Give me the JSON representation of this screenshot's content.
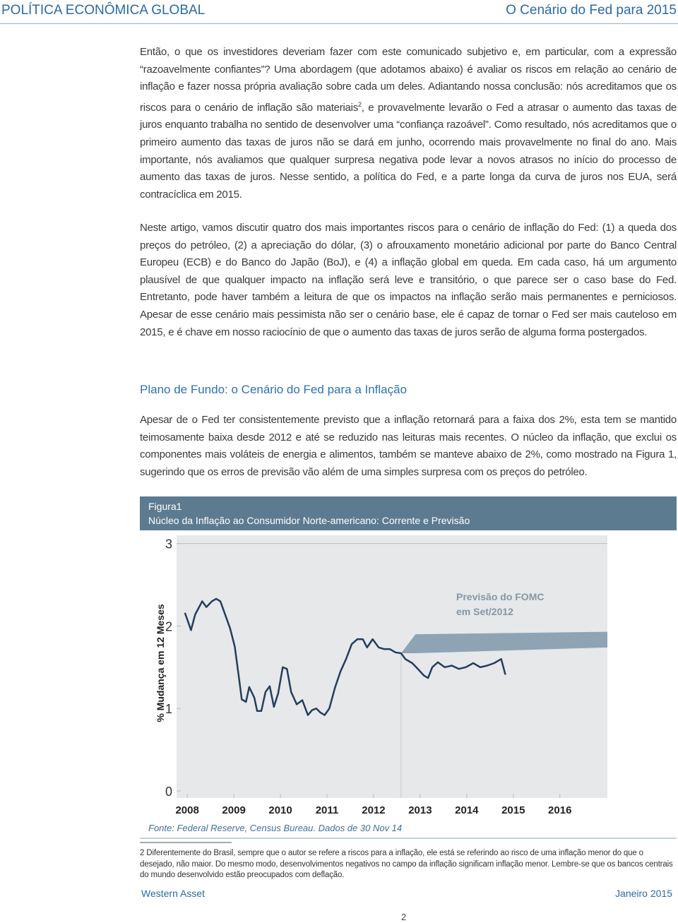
{
  "header": {
    "left": "POLÍTICA ECONÔMICA GLOBAL",
    "right": "O Cenário do Fed para 2015"
  },
  "body": {
    "paragraph_1": {
      "before": "Então, o que os investidores deveriam fazer com este comunicado subjetivo e, em particular, com a expressão “razoavelmente confiantes”? Uma abordagem (que adotamos abaixo) é avaliar os riscos em relação ao cenário de inflação e fazer nossa própria avaliação sobre cada um deles. Adiantando nossa conclusão: nós acreditamos que os riscos para o cenário de inflação são materiais",
      "sup": "2",
      "after": ", e provavelmente levarão o Fed a atrasar o aumento das taxas de juros enquanto trabalha no sentido de desenvolver uma “confiança razoável”. Como resultado, nós acreditamos que o primeiro aumento das taxas de juros não se dará em junho, ocorrendo mais provavelmente no final do ano. Mais importante, nós avaliamos que qualquer surpresa negativa pode levar a novos atrasos no início do processo de aumento das taxas de juros. Nesse sentido, a política do Fed, e a parte longa da curva de juros nos EUA, será contracíclica em 2015."
    },
    "paragraph_2": "Neste artigo, vamos discutir quatro dos mais importantes riscos para o cenário de inflação do Fed: (1) a queda dos preços do petróleo, (2) a apreciação do dólar, (3) o afrouxamento monetário adicional por parte do Banco Central Europeu (ECB) e do Banco do Japão (BoJ), e (4) a inflação global em queda. Em cada caso, há um argumento plausível de que qualquer impacto na inflação será leve e transitório, o que parece ser o caso base do Fed. Entretanto, pode haver também a leitura de que os impactos na inflação serão mais permanentes e perniciosos. Apesar de esse cenário mais pessimista não ser o cenário base, ele é capaz de tornar o Fed ser mais cauteloso em 2015, e é chave em nosso raciocínio de que o aumento das taxas de juros serão de alguma forma postergados."
  },
  "section": {
    "heading": "Plano de Fundo: o Cenário do Fed para a Inflação",
    "paragraph": "Apesar de o Fed ter consistentemente previsto que a inflação retornará para a faixa dos 2%, esta tem se mantido teimosamente baixa desde 2012 e até se reduzido nas leituras mais recentes. O núcleo da inflação, que exclui os componentes mais voláteis de energia e alimentos, também se manteve abaixo de 2%, como mostrado na Figura 1, sugerindo que os erros de previsão vão além de uma simples surpresa com os preços do petróleo."
  },
  "figure": {
    "label": "Figura1"
  },
  "chart_data": {
    "type": "line",
    "title": "Núcleo da Inflação ao Consumidor Norte-americano: Corrente e Previsão",
    "y_label": "% Mudança em 12 Meses",
    "annotation": [
      "Previsão do FOMC",
      "em Set/2012"
    ],
    "source": "Fonte: Federal Reserve, Census Bureau. Dados de 30 Nov 14",
    "xlim": [
      2007.77,
      2017.02
    ],
    "xticks": [
      2008,
      2009,
      2010,
      2011,
      2012,
      2013,
      2014,
      2015,
      2016
    ],
    "ylim": [
      0,
      3.1
    ],
    "yticks": [
      0,
      1,
      2,
      3
    ],
    "color": "#243d5c",
    "x": [
      2007.95,
      2008.08,
      2008.17,
      2008.32,
      2008.41,
      2008.53,
      2008.62,
      2008.71,
      2008.8,
      2008.92,
      2009.02,
      2009.11,
      2009.17,
      2009.26,
      2009.33,
      2009.44,
      2009.5,
      2009.59,
      2009.68,
      2009.77,
      2009.86,
      2009.95,
      2010.05,
      2010.14,
      2010.23,
      2010.35,
      2010.47,
      2010.59,
      2010.68,
      2010.77,
      2010.86,
      2010.95,
      2011.05,
      2011.17,
      2011.29,
      2011.41,
      2011.53,
      2011.65,
      2011.77,
      2011.86,
      2011.98,
      2012.11,
      2012.23,
      2012.35,
      2012.47,
      2012.59,
      2012.68,
      2012.83,
      2012.95,
      2013.08,
      2013.17,
      2013.26,
      2013.38,
      2013.53,
      2013.68,
      2013.83,
      2013.98,
      2014.14,
      2014.29,
      2014.44,
      2014.59,
      2014.74,
      2014.83
    ],
    "values": [
      2.16,
      1.95,
      2.14,
      2.3,
      2.23,
      2.3,
      2.33,
      2.3,
      2.16,
      1.97,
      1.75,
      1.37,
      1.11,
      1.08,
      1.26,
      1.13,
      0.97,
      0.97,
      1.2,
      1.27,
      1.02,
      1.18,
      1.5,
      1.48,
      1.2,
      1.05,
      1.1,
      0.92,
      0.98,
      1.0,
      0.95,
      0.92,
      1.0,
      1.25,
      1.45,
      1.6,
      1.78,
      1.84,
      1.84,
      1.74,
      1.84,
      1.74,
      1.72,
      1.72,
      1.68,
      1.67,
      1.6,
      1.55,
      1.48,
      1.4,
      1.37,
      1.5,
      1.56,
      1.5,
      1.52,
      1.48,
      1.5,
      1.55,
      1.5,
      1.52,
      1.55,
      1.6,
      1.41
    ],
    "band": {
      "color": "#8ea4b4",
      "x": [
        2012.59,
        2012.9,
        2017.02
      ],
      "low": [
        1.67,
        1.67,
        1.74
      ],
      "high": [
        1.67,
        1.9,
        1.93
      ]
    }
  },
  "footnote": {
    "number": "2",
    "text": "Diferentemente do Brasil, sempre que o autor se refere a riscos para a inflação, ele está se referindo ao risco de uma inflação menor do que o desejado, não maior. Do mesmo modo, desenvolvimentos negativos no campo da inflação significam inflação menor. Lembre-se que os bancos centrais do mundo desenvolvido estão preocupados com deflação."
  },
  "footer": {
    "left": "Western Asset",
    "right": "Janeiro 2015",
    "page": "2"
  }
}
